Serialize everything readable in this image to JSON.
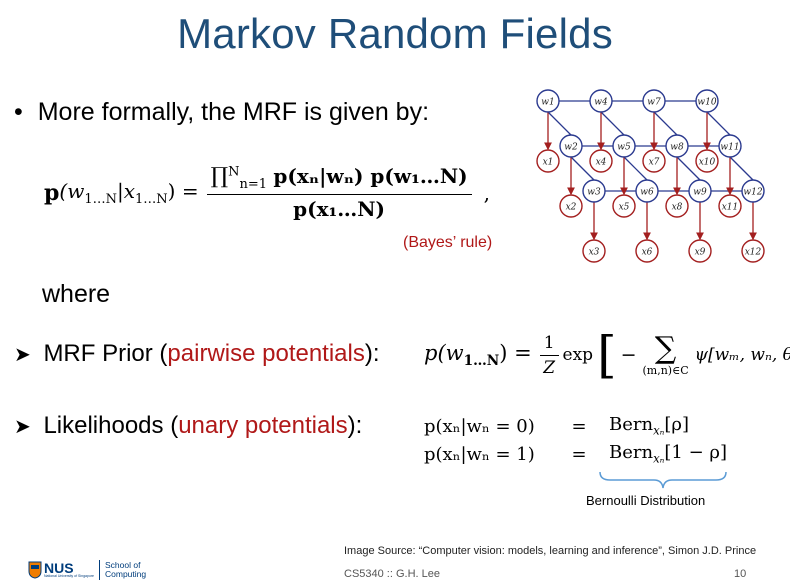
{
  "title": "Markov Random Fields",
  "bullet": {
    "marker": "•",
    "text": "More formally, the MRF is given by:"
  },
  "bayes_equation": {
    "lhs_p": "p",
    "lhs_args": "(w",
    "lhs_sub1": "1…N",
    "lhs_mid": "|x",
    "lhs_sub2": "1…N",
    "lhs_close": ") =",
    "prod": "∏",
    "prod_top": "N",
    "prod_bottom": "n=1",
    "num_terms": "p(xₙ|wₙ) p(w₁…N)",
    "den_terms": "p(x₁…N)",
    "comma": ","
  },
  "bayes_rule": "(Bayes’ rule)",
  "where": "where",
  "prior": {
    "arrow": "➤",
    "label_start": "MRF Prior (",
    "label_red": "pairwise potentials",
    "label_end": "):",
    "eq_lhs": "p(w",
    "eq_lhs_sub": "1…N",
    "eq_lhs_end": ") =",
    "frac_num": "1",
    "frac_den": "Z",
    "exp": "exp",
    "minus": "−",
    "sum": "∑",
    "sum_sub": "(m,n)∈C",
    "psi": "ψ[wₘ, wₙ, θ]"
  },
  "likelihood": {
    "arrow": "➤",
    "label_start": "Likelihoods (",
    "label_red": "unary potentials",
    "label_end": "):",
    "rows": [
      {
        "lhs": "p(xₙ|wₙ = 0)",
        "eq": "=",
        "rhs": "Bern",
        "rhs_sub": "xₙ",
        "rhs_arg": "[ρ]"
      },
      {
        "lhs": "p(xₙ|wₙ = 1)",
        "eq": "=",
        "rhs": "Bern",
        "rhs_sub": "xₙ",
        "rhs_arg": "[1 − ρ]"
      }
    ],
    "brace_label": "Bernoulli Distribution"
  },
  "graph": {
    "w_labels": [
      "w1",
      "w4",
      "w7",
      "w10",
      "w2",
      "w5",
      "w8",
      "w11",
      "w3",
      "w6",
      "w9",
      "w12"
    ],
    "x_labels": [
      "x1",
      "x4",
      "x7",
      "x10",
      "x2",
      "x5",
      "x8",
      "x11",
      "x3",
      "x6",
      "x9",
      "x12"
    ],
    "w_color": "#2b3a8f",
    "x_color": "#a31f1f"
  },
  "source": "Image Source: “Computer vision: models, learning and inference”, Simon J.D. Prince",
  "course": "CS5340 :: G.H. Lee",
  "page_number": "10",
  "logo": {
    "nus": "NUS",
    "subtext": "National University of Singapore",
    "school_line1": "School of",
    "school_line2": "Computing"
  }
}
